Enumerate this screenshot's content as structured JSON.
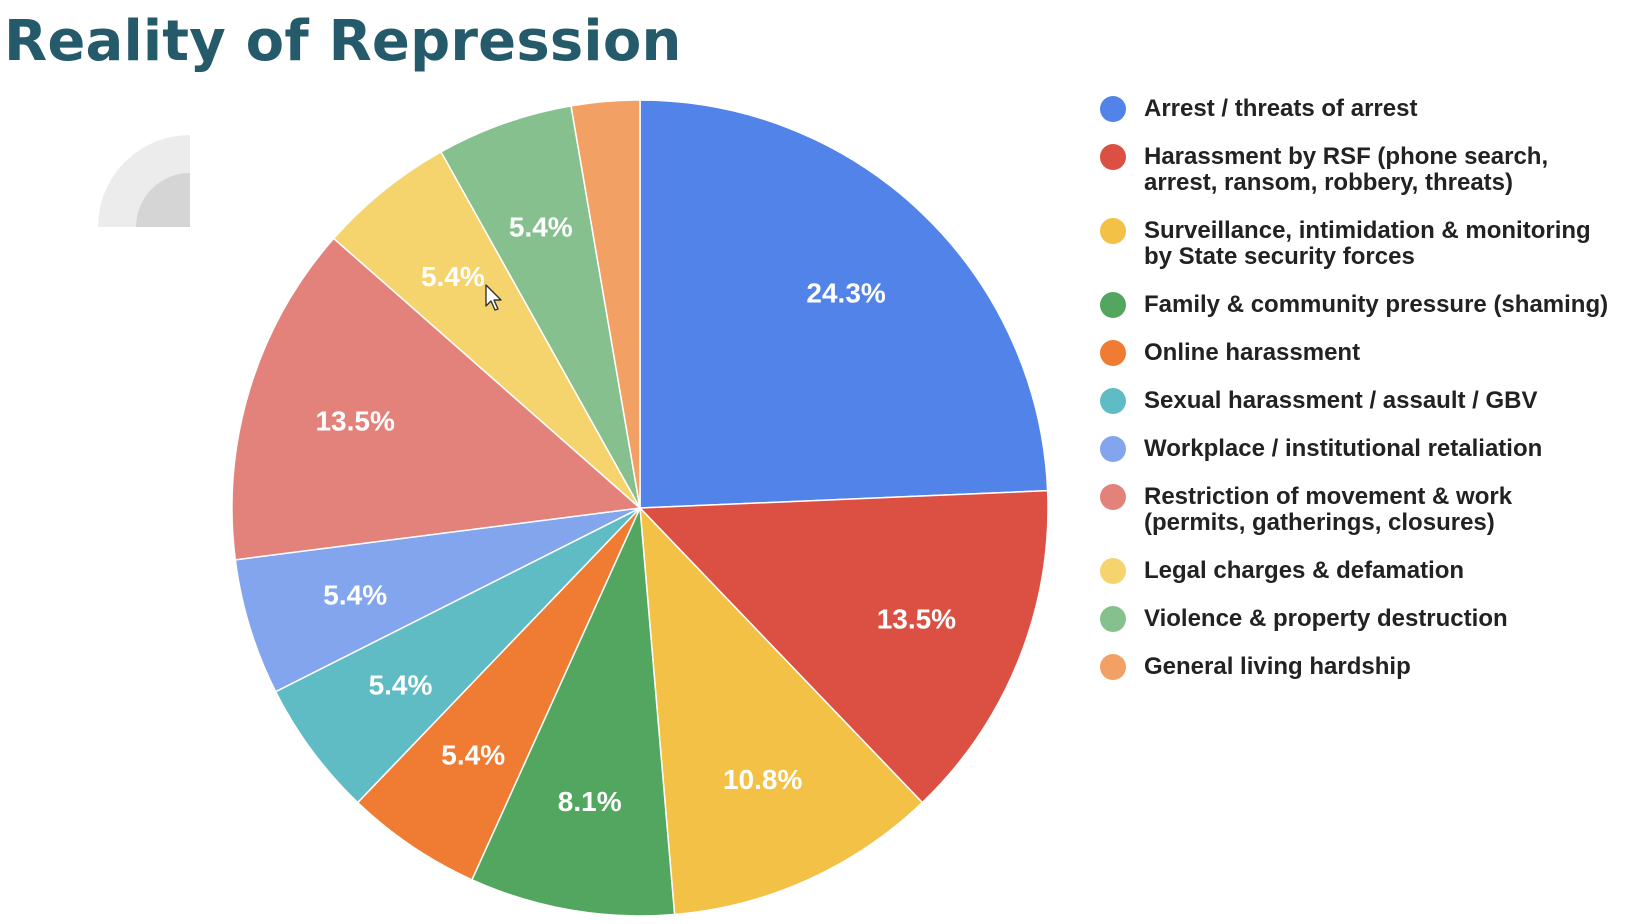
{
  "title": "Reality of Repression",
  "chart_data": {
    "type": "pie",
    "title": "",
    "start_angle": "12 o'clock",
    "direction": "clockwise",
    "legend_position": "right",
    "slices": [
      {
        "label": "Arrest / threats of arrest",
        "value": 24.3,
        "display": "24.3%",
        "color": "#5283e8"
      },
      {
        "label": "Harassment by RSF (phone search, arrest, ransom, robbery, threats)",
        "value": 13.5,
        "display": "13.5%",
        "color": "#db5043"
      },
      {
        "label": "Surveillance, intimidation & monitoring by State security forces",
        "value": 10.8,
        "display": "10.8%",
        "color": "#f2c146"
      },
      {
        "label": "Family & community pressure (shaming)",
        "value": 8.1,
        "display": "8.1%",
        "color": "#52a65f"
      },
      {
        "label": "Online harassment",
        "value": 5.4,
        "display": "5.4%",
        "color": "#f07b33"
      },
      {
        "label": "Sexual harassment / assault / GBV",
        "value": 5.4,
        "display": "5.4%",
        "color": "#5fbcc4"
      },
      {
        "label": "Workplace / institutional retaliation",
        "value": 5.4,
        "display": "5.4%",
        "color": "#82a5ee"
      },
      {
        "label": "Restriction of movement & work (permits, gatherings, closures)",
        "value": 13.5,
        "display": "13.5%",
        "color": "#e3827a"
      },
      {
        "label": "Legal charges & defamation",
        "value": 5.4,
        "display": "5.4%",
        "color": "#f5d46d"
      },
      {
        "label": "Violence & property destruction",
        "value": 5.4,
        "display": "5.4%",
        "color": "#86c08e"
      },
      {
        "label": "General living hardship",
        "value": 2.7,
        "display": "",
        "color": "#f2a064"
      }
    ]
  }
}
